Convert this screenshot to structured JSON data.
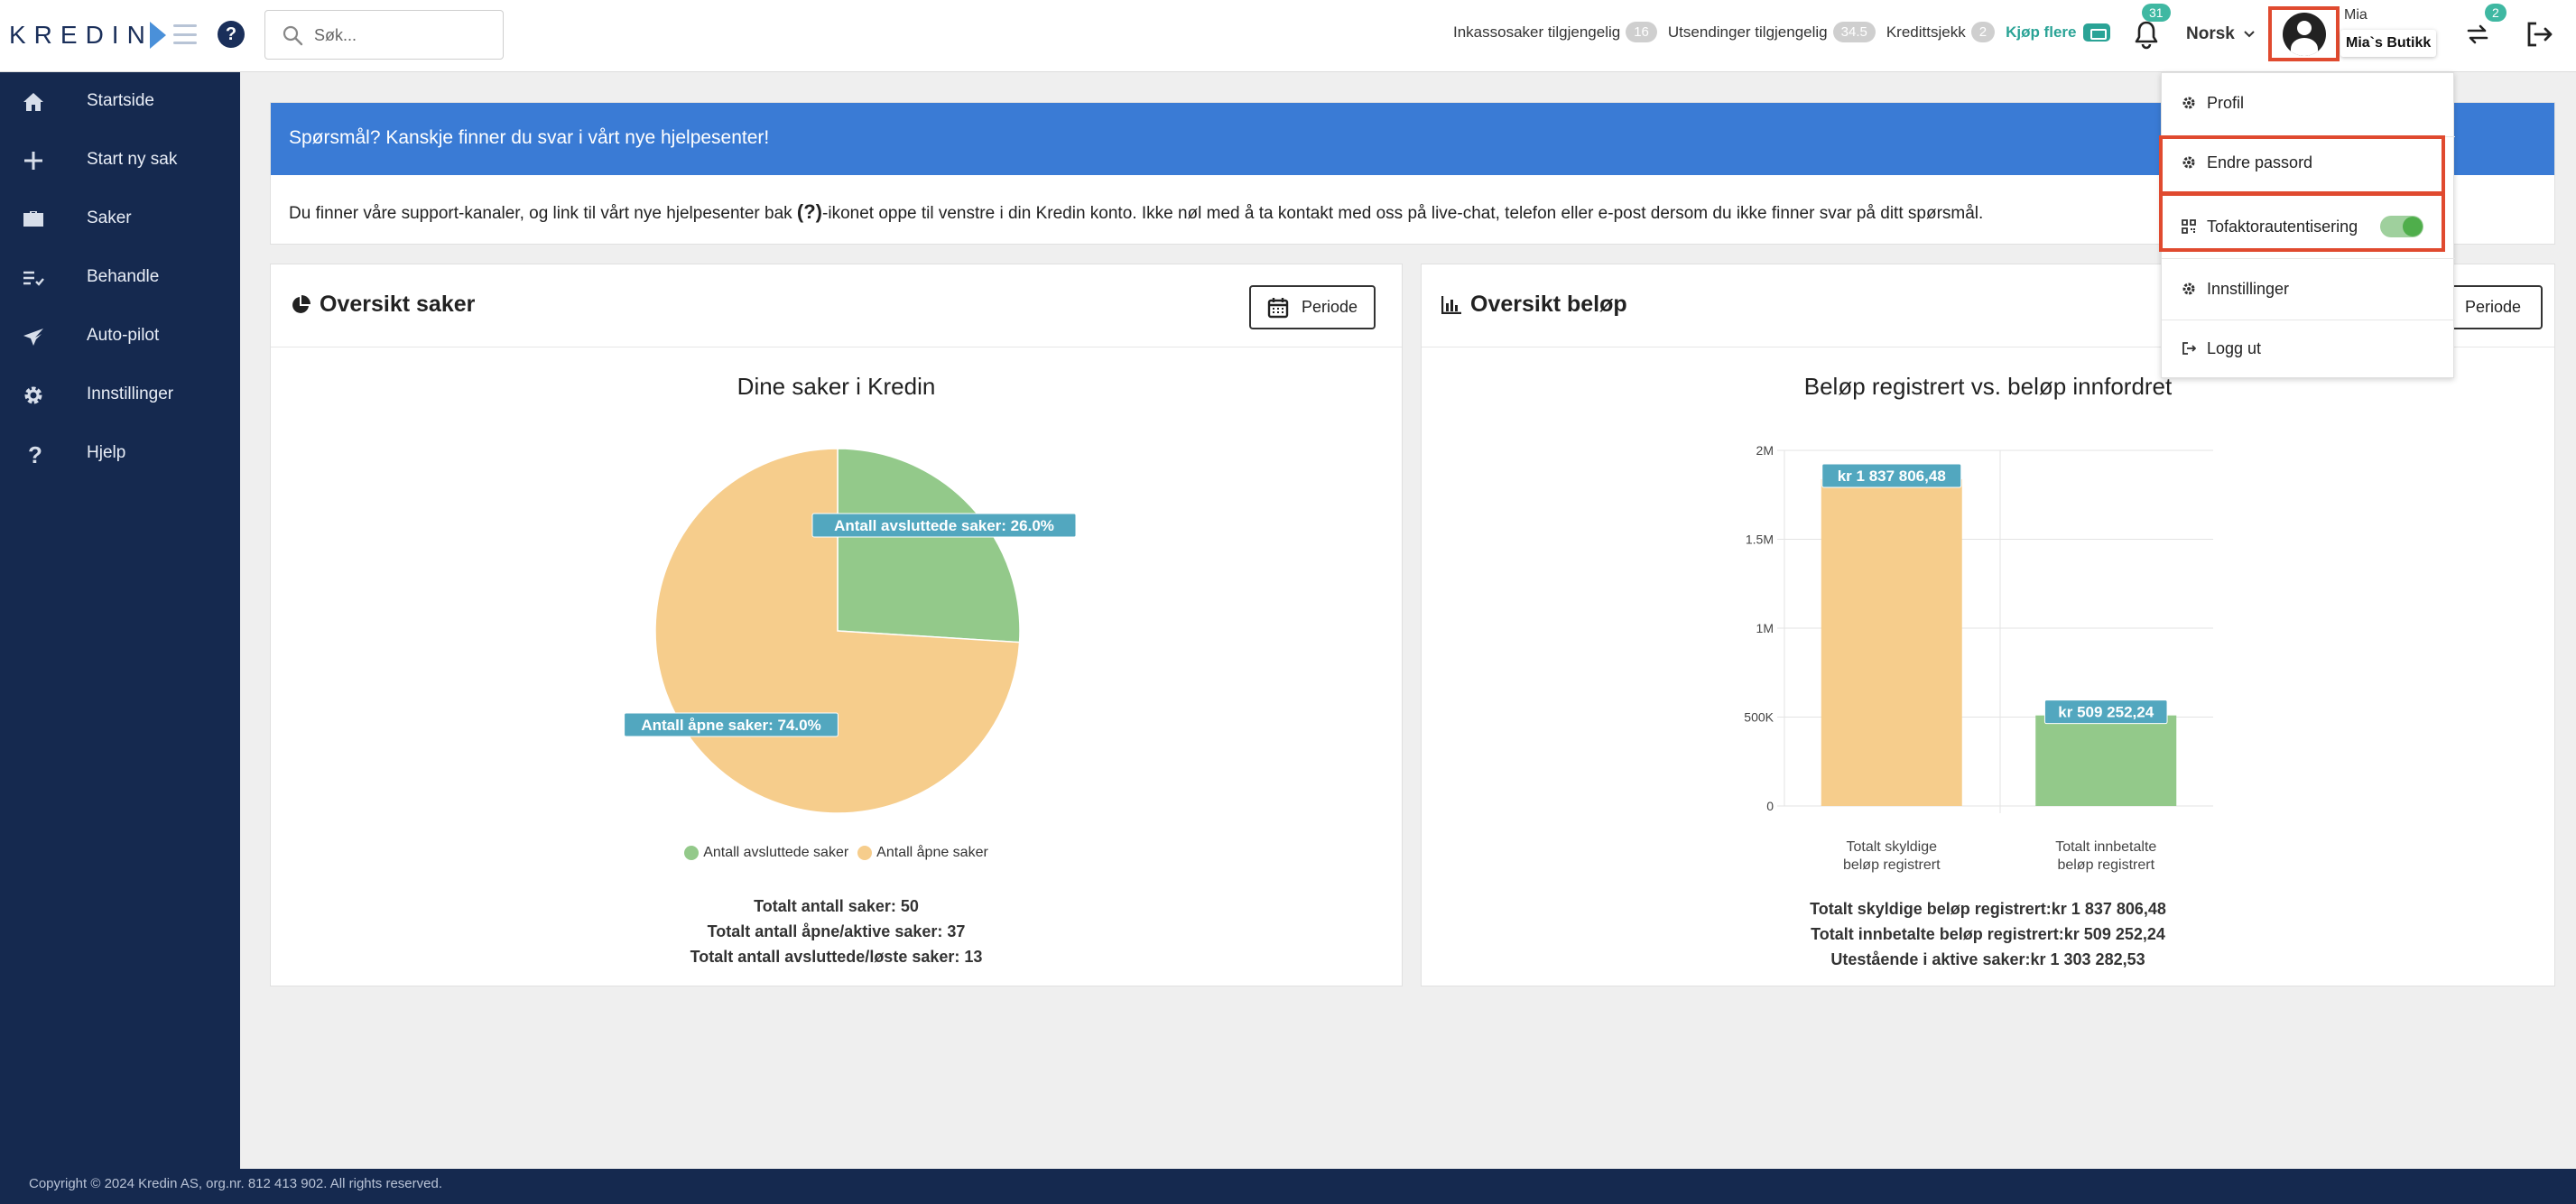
{
  "header": {
    "logo_text": "KREDIN",
    "search_placeholder": "Søk...",
    "stats": [
      {
        "label": "Inkassosaker tilgjengelig",
        "value": "16"
      },
      {
        "label": "Utsendinger tilgjengelig",
        "value": "34.5"
      },
      {
        "label": "Kredittsjekk",
        "value": "2"
      }
    ],
    "buy_more": "Kjøp flere",
    "notifications_count": "31",
    "language": "Norsk",
    "user_name": "Mia",
    "shop_name": "Mia`s Butikk",
    "switch_count": "2"
  },
  "sidebar": {
    "items": [
      {
        "label": "Startside",
        "icon": "home-icon"
      },
      {
        "label": "Start ny sak",
        "icon": "plus-icon"
      },
      {
        "label": "Saker",
        "icon": "briefcase-icon"
      },
      {
        "label": "Behandle",
        "icon": "checklist-icon"
      },
      {
        "label": "Auto-pilot",
        "icon": "plane-icon"
      },
      {
        "label": "Innstillinger",
        "icon": "gear-icon"
      },
      {
        "label": "Hjelp",
        "icon": "question-icon"
      }
    ]
  },
  "info": {
    "heading": "Spørsmål? Kanskje finner du svar i vårt nye hjelpesenter!",
    "body_before": "Du finner våre support-kanaler, og link til vårt nye hjelpesenter bak ",
    "body_symbol": "(?)",
    "body_after": "-ikonet oppe til venstre i din Kredin konto. Ikke nøl med å ta kontakt med oss på live-chat, telefon eller e-post dersom du ikke finner svar på ditt spørsmål."
  },
  "cases_card": {
    "title": "Oversikt saker",
    "periode": "Periode",
    "totals": [
      "Totalt antall saker: 50",
      "Totalt antall åpne/aktive saker: 37",
      "Totalt antall avsluttede/løste saker: 13"
    ]
  },
  "amount_card": {
    "title": "Oversikt beløp",
    "periode": "Periode",
    "totals": [
      "Totalt skyldige beløp registrert:kr 1 837 806,48",
      "Totalt innbetalte beløp registrert:kr 509 252,24",
      "Utestående i aktive saker:kr 1 303 282,53"
    ]
  },
  "chart_data": [
    {
      "type": "pie",
      "title": "Dine saker i Kredin",
      "series": [
        {
          "name": "Antall avsluttede saker",
          "value": 26.0,
          "color": "#93c98a",
          "label": "Antall avsluttede saker: 26.0%"
        },
        {
          "name": "Antall åpne saker",
          "value": 74.0,
          "color": "#f6cd8c",
          "label": "Antall åpne saker: 74.0%"
        }
      ],
      "legend_position": "bottom"
    },
    {
      "type": "bar",
      "title": "Beløp registrert vs. beløp innfordret",
      "categories": [
        [
          "Totalt skyldige",
          "beløp registrert"
        ],
        [
          "Totalt innbetalte",
          "beløp registrert"
        ]
      ],
      "values": [
        1837806.48,
        509252.24
      ],
      "value_labels": [
        "kr 1 837 806,48",
        "kr 509 252,24"
      ],
      "colors": [
        "#f6cd8c",
        "#93c98a"
      ],
      "ylim": [
        0,
        2000000
      ],
      "yticks": [
        0,
        500000,
        1000000,
        1500000,
        2000000
      ],
      "ytick_labels": [
        "0",
        "500K",
        "1M",
        "1.5M",
        "2M"
      ],
      "grid": true
    }
  ],
  "dropdown": {
    "items": [
      {
        "label": "Profil",
        "icon": "gear-icon"
      },
      {
        "label": "Endre passord",
        "icon": "gear-icon"
      },
      {
        "label": "Tofaktorautentisering",
        "icon": "qr-icon",
        "toggle": true
      },
      {
        "label": "Innstillinger",
        "icon": "gear-icon"
      },
      {
        "label": "Logg ut",
        "icon": "logout-icon"
      }
    ]
  },
  "footer": {
    "copyright": "Copyright © 2024 Kredin AS, org.nr. 812 413 902. All rights reserved."
  },
  "colors": {
    "sidebar": "#15294f",
    "accent_blue": "#3a7bd5",
    "teal": "#3fb8a2",
    "highlight": "#e04a2f",
    "label_bg": "#52a7bf"
  }
}
